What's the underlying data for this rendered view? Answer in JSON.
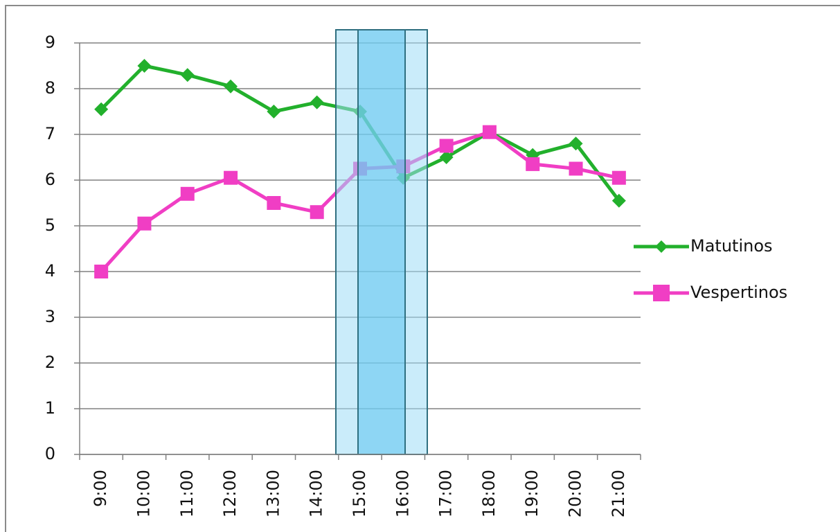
{
  "chart_data": {
    "type": "line",
    "categories": [
      "9:00",
      "10:00",
      "11:00",
      "12:00",
      "13:00",
      "14:00",
      "15:00",
      "16:00",
      "17:00",
      "18:00",
      "19:00",
      "20:00",
      "21:00"
    ],
    "series": [
      {
        "name": "Matutinos",
        "color": "#22b02c",
        "marker": "diamond",
        "values": [
          7.55,
          8.5,
          8.3,
          8.05,
          7.5,
          7.7,
          7.5,
          6.05,
          6.5,
          7.05,
          6.55,
          6.8,
          5.55
        ]
      },
      {
        "name": "Vespertinos",
        "color": "#f03ec4",
        "marker": "square",
        "values": [
          4.0,
          5.05,
          5.7,
          6.05,
          5.5,
          5.3,
          6.25,
          6.3,
          6.75,
          7.05,
          6.35,
          6.25,
          6.05
        ]
      }
    ],
    "ylim": [
      0,
      9
    ],
    "yticks": [
      0,
      1,
      2,
      3,
      4,
      5,
      6,
      7,
      8,
      9
    ],
    "grid": true,
    "legend": "right"
  }
}
